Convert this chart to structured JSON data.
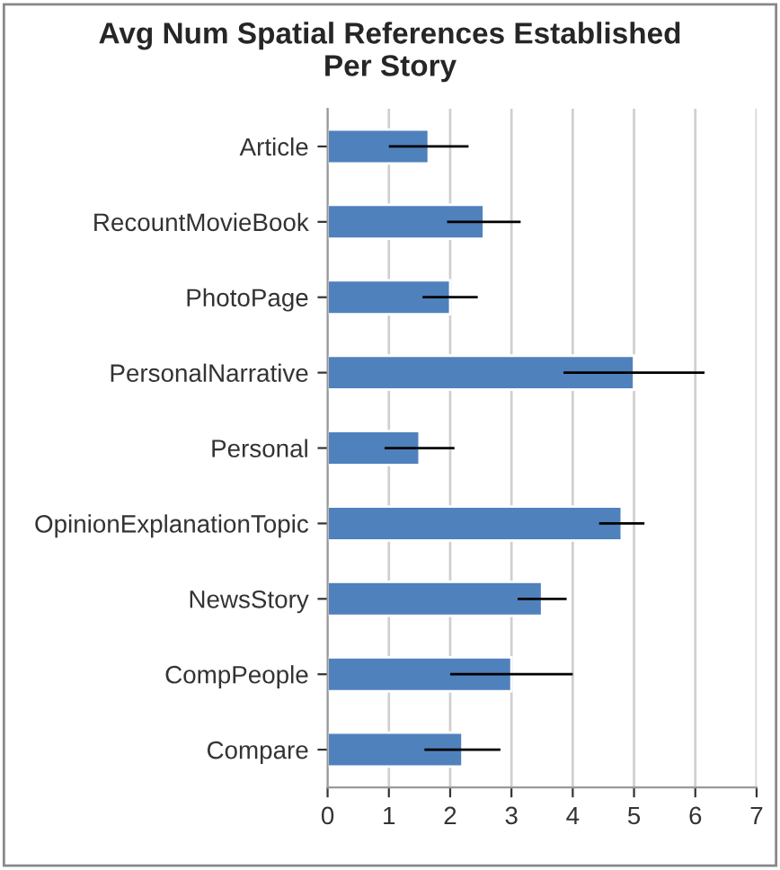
{
  "chart_data": {
    "type": "bar",
    "orientation": "horizontal",
    "title": "Avg Num Spatial References Established\nPer Story",
    "categories": [
      "Article",
      "RecountMovieBook",
      "PhotoPage",
      "PersonalNarrative",
      "Personal",
      "OpinionExplanationTopic",
      "NewsStory",
      "CompPeople",
      "Compare"
    ],
    "values": [
      1.65,
      2.55,
      2.0,
      5.0,
      1.5,
      4.8,
      3.5,
      3.0,
      2.2
    ],
    "errors": [
      0.65,
      0.6,
      0.45,
      1.15,
      0.57,
      0.37,
      0.4,
      1.0,
      0.62
    ],
    "color": "#4f81bd",
    "xlim": [
      0,
      7
    ],
    "xticks": [
      0,
      1,
      2,
      3,
      4,
      5,
      6,
      7
    ],
    "grid": "x",
    "legend": false
  }
}
